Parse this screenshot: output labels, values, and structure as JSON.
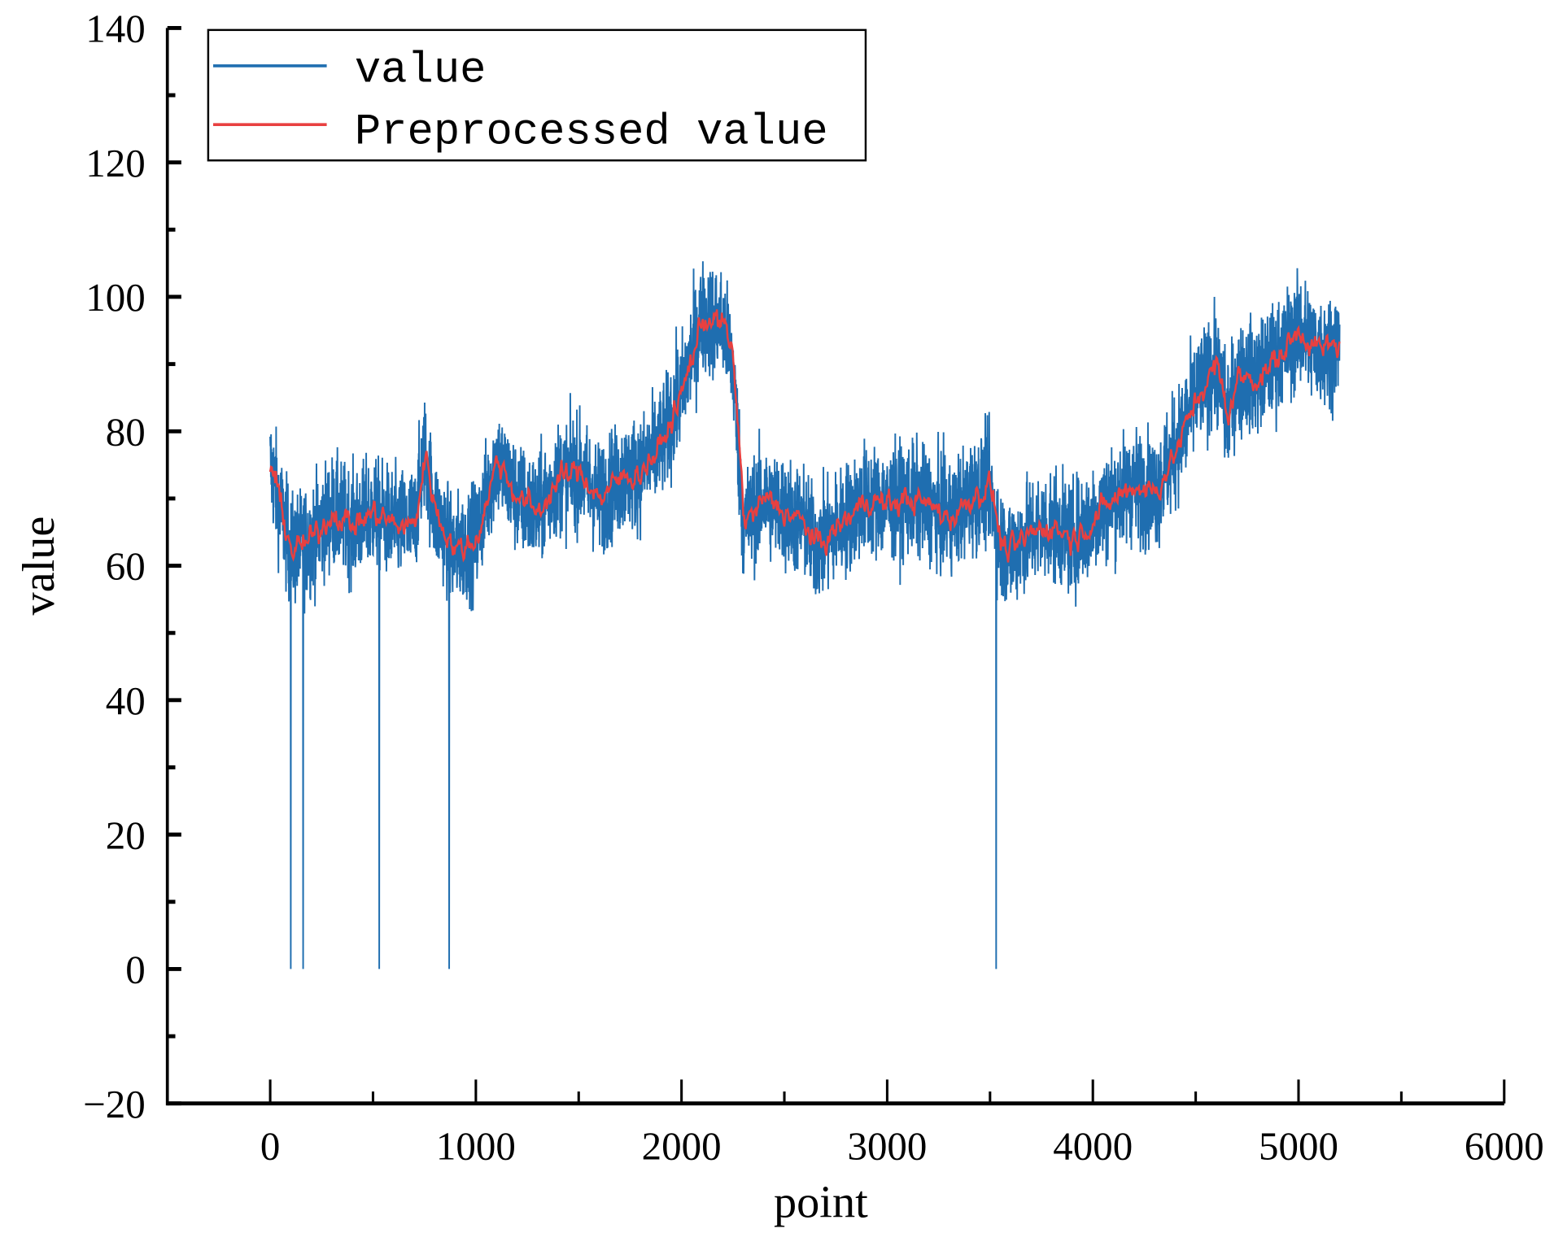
{
  "chart_data": {
    "type": "line",
    "title": "",
    "xlabel": "point",
    "ylabel": "value",
    "xlim": [
      -500,
      6000
    ],
    "ylim": [
      -20,
      140
    ],
    "xticks": [
      0,
      1000,
      2000,
      3000,
      4000,
      5000,
      6000
    ],
    "yticks": [
      -20,
      0,
      20,
      40,
      60,
      80,
      100,
      120,
      140
    ],
    "xtick_labels": [
      "0",
      "1000",
      "2000",
      "3000",
      "4000",
      "5000",
      "6000"
    ],
    "ytick_labels": [
      "−20",
      "0",
      "20",
      "40",
      "60",
      "80",
      "100",
      "120",
      "140"
    ],
    "grid": false,
    "legend_position": "top-left",
    "colors": {
      "value": "#1f6eb0",
      "preprocessed": "#e84040"
    },
    "series": [
      {
        "name": "value",
        "note_points": "raw noisy signal around the preprocessed trend, approx 5200 points",
        "dropouts_to_zero_at": [
          100,
          160,
          530,
          870,
          3530
        ]
      },
      {
        "name": "Preprocessed value",
        "x": [
          0,
          100,
          200,
          300,
          400,
          500,
          600,
          700,
          750,
          800,
          900,
          1000,
          1100,
          1200,
          1300,
          1400,
          1500,
          1600,
          1700,
          1800,
          1900,
          2000,
          2100,
          2200,
          2250,
          2300,
          2400,
          2500,
          2600,
          2650,
          2700,
          2800,
          2900,
          3000,
          3100,
          3200,
          3300,
          3400,
          3500,
          3550,
          3600,
          3700,
          3800,
          3900,
          4000,
          4100,
          4200,
          4300,
          4400,
          4500,
          4600,
          4650,
          4700,
          4800,
          4900,
          5000,
          5100,
          5200
        ],
        "y": [
          75,
          62,
          64,
          68,
          66,
          68,
          66,
          66,
          77,
          68,
          62,
          64,
          76,
          70,
          68,
          73,
          74,
          70,
          73,
          74,
          78,
          86,
          97,
          96,
          90,
          66,
          70,
          68,
          66,
          63,
          64,
          67,
          70,
          69,
          70,
          69,
          67,
          70,
          72,
          63,
          62,
          65,
          66,
          64,
          67,
          70,
          72,
          71,
          77,
          85,
          90,
          82,
          88,
          88,
          91,
          95,
          92,
          93
        ]
      }
    ]
  }
}
